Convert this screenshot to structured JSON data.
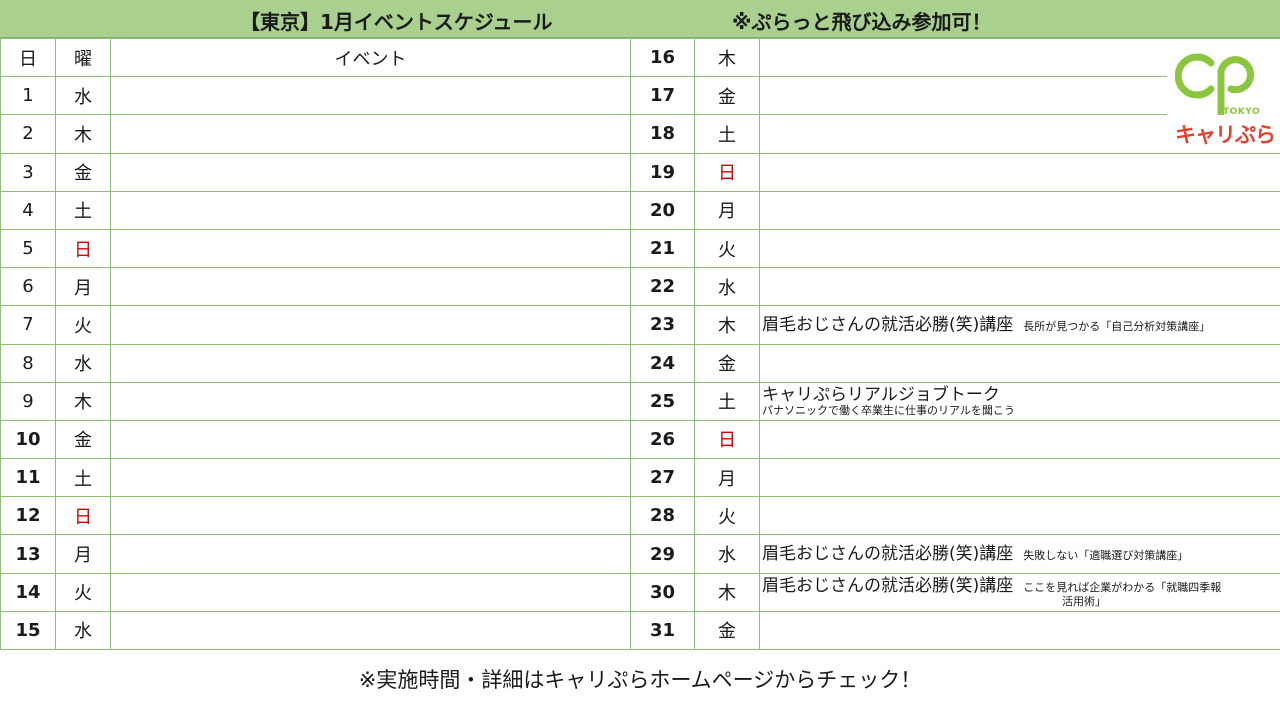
{
  "header": {
    "title": "【東京】1月イベントスケジュール",
    "note": "※ぷらっと飛び込み参加可！"
  },
  "columns": {
    "day": "日",
    "weekday": "曜",
    "event": "イベント"
  },
  "left_rows": [
    {
      "day": "1",
      "weekday": "水"
    },
    {
      "day": "2",
      "weekday": "木"
    },
    {
      "day": "3",
      "weekday": "金"
    },
    {
      "day": "4",
      "weekday": "土"
    },
    {
      "day": "5",
      "weekday": "日"
    },
    {
      "day": "6",
      "weekday": "月"
    },
    {
      "day": "7",
      "weekday": "火"
    },
    {
      "day": "8",
      "weekday": "水"
    },
    {
      "day": "9",
      "weekday": "木"
    },
    {
      "day": "10",
      "weekday": "金"
    },
    {
      "day": "11",
      "weekday": "土"
    },
    {
      "day": "12",
      "weekday": "日"
    },
    {
      "day": "13",
      "weekday": "月"
    },
    {
      "day": "14",
      "weekday": "火"
    },
    {
      "day": "15",
      "weekday": "水"
    }
  ],
  "right_rows": [
    {
      "day": "16",
      "weekday": "木",
      "event": "",
      "sub": ""
    },
    {
      "day": "17",
      "weekday": "金",
      "event": "",
      "sub": ""
    },
    {
      "day": "18",
      "weekday": "土",
      "event": "",
      "sub": ""
    },
    {
      "day": "19",
      "weekday": "日",
      "event": "",
      "sub": ""
    },
    {
      "day": "20",
      "weekday": "月",
      "event": "",
      "sub": ""
    },
    {
      "day": "21",
      "weekday": "火",
      "event": "",
      "sub": ""
    },
    {
      "day": "22",
      "weekday": "水",
      "event": "",
      "sub": ""
    },
    {
      "day": "23",
      "weekday": "木",
      "event": "眉毛おじさんの就活必勝(笑)講座",
      "sub": "長所が見つかる「自己分析対策講座」"
    },
    {
      "day": "24",
      "weekday": "金",
      "event": "",
      "sub": ""
    },
    {
      "day": "25",
      "weekday": "土",
      "event": "キャリぷらリアルジョブトーク",
      "sub": "パナソニックで働く卒業生に仕事のリアルを聞こう"
    },
    {
      "day": "26",
      "weekday": "日",
      "event": "",
      "sub": ""
    },
    {
      "day": "27",
      "weekday": "月",
      "event": "",
      "sub": ""
    },
    {
      "day": "28",
      "weekday": "火",
      "event": "",
      "sub": ""
    },
    {
      "day": "29",
      "weekday": "水",
      "event": "眉毛おじさんの就活必勝(笑)講座",
      "sub": "失敗しない「適職選び対策講座」"
    },
    {
      "day": "30",
      "weekday": "木",
      "event": "眉毛おじさんの就活必勝(笑)講座",
      "sub": "ここを見れば企業がわかる「就職四季報",
      "sub2": "活用術」"
    },
    {
      "day": "31",
      "weekday": "金",
      "event": "",
      "sub": ""
    }
  ],
  "logo": {
    "tokyo": "TOKYO",
    "name": "キャリぷら",
    "colors": {
      "green": "#8cc63f",
      "red": "#e4402f"
    }
  },
  "footer": "※実施時間・詳細はキャリぷらホームページからチェック！",
  "colors": {
    "header_bg": "#a9d08e",
    "grid": "#8fc07a",
    "sunday": "#d40000"
  }
}
